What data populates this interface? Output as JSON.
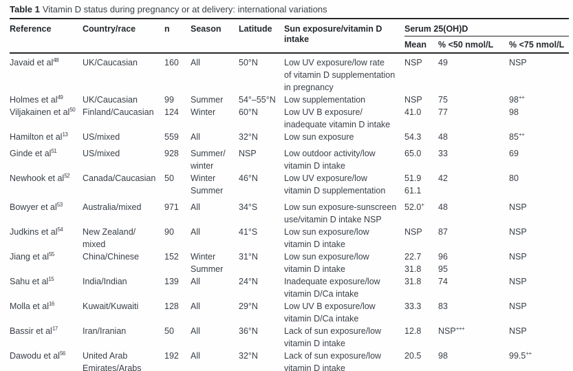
{
  "title": {
    "bold": "Table 1",
    "rest": "Vitamin D status during pregnancy or at delivery: international variations"
  },
  "headers": {
    "reference": "Reference",
    "country": "Country/race",
    "n": "n",
    "season": "Season",
    "latitude": "Latitude",
    "exposure": {
      "0": "Sun exposure/vitamin D",
      "1": "intake"
    },
    "serum_group": "Serum 25(OH)D",
    "mean": "Mean",
    "pct50": "% <50 nmol/L",
    "pct75": "% <75 nmol/L"
  },
  "rows": [
    {
      "reference": "Javaid et al^48",
      "country": [
        "UK/Caucasian"
      ],
      "n": "160",
      "season": [
        "All"
      ],
      "latitude": "50°N",
      "exposure": [
        "Low UV exposure/low rate",
        "of vitamin D supplementation",
        "in pregnancy"
      ],
      "mean": [
        "NSP"
      ],
      "pct50": [
        "49"
      ],
      "pct75": [
        "NSP"
      ]
    },
    {
      "reference": "Holmes et al^49",
      "country": [
        "UK/Caucasian"
      ],
      "n": "99",
      "season": [
        "Summer"
      ],
      "latitude": "54°–55°N",
      "exposure": [
        "Low supplementation"
      ],
      "mean": [
        "NSP"
      ],
      "pct50": [
        "75"
      ],
      "pct75": [
        "98^++"
      ]
    },
    {
      "reference": "Viljakainen et al^50",
      "country": [
        "Finland/Caucasian"
      ],
      "n": "124",
      "season": [
        "Winter"
      ],
      "latitude": "60°N",
      "exposure": [
        "Low UV B exposure/",
        "inadequate vitamin D intake"
      ],
      "mean": [
        "41.0"
      ],
      "pct50": [
        "77"
      ],
      "pct75": [
        "98"
      ]
    },
    {
      "reference": "Hamilton et al^13",
      "country": [
        "US/mixed"
      ],
      "n": "559",
      "season": [
        "All"
      ],
      "latitude": "32°N",
      "exposure": [
        "Low sun exposure"
      ],
      "mean": [
        "54.3"
      ],
      "pct50": [
        "48"
      ],
      "pct75": [
        "85^++"
      ]
    },
    {
      "reference": "Ginde et al^51",
      "country": [
        "US/mixed"
      ],
      "n": "928",
      "season": [
        "Summer/",
        "winter"
      ],
      "latitude": "NSP",
      "exposure": [
        "Low outdoor activity/low",
        "vitamin D intake"
      ],
      "mean": [
        "65.0"
      ],
      "pct50": [
        "33"
      ],
      "pct75": [
        "69"
      ]
    },
    {
      "reference": "Newhook et al^52",
      "country": [
        "Canada/Caucasian"
      ],
      "n": "50",
      "season": [
        "Winter",
        "Summer"
      ],
      "latitude": "46°N",
      "exposure": [
        "Low UV exposure/low",
        "vitamin D supplementation"
      ],
      "mean": [
        "51.9",
        "61.1"
      ],
      "pct50": [
        "42"
      ],
      "pct75": [
        "80"
      ]
    },
    {
      "reference": "Bowyer et al^53",
      "country": [
        "Australia/mixed"
      ],
      "n": "971",
      "season": [
        "All"
      ],
      "latitude": "34°S",
      "exposure": [
        "Low sun exposure-sunscreen",
        "use/vitamin D intake NSP"
      ],
      "mean": [
        "52.0^+"
      ],
      "pct50": [
        "48"
      ],
      "pct75": [
        "NSP"
      ]
    },
    {
      "reference": "Judkins et al^54",
      "country": [
        "New Zealand/",
        "mixed"
      ],
      "n": "90",
      "season": [
        "All"
      ],
      "latitude": "41°S",
      "exposure": [
        "Low sun exposure/low",
        "vitamin D intake"
      ],
      "mean": [
        "NSP"
      ],
      "pct50": [
        "87"
      ],
      "pct75": [
        "NSP"
      ]
    },
    {
      "reference": "Jiang et al^55",
      "country": [
        "China/Chinese"
      ],
      "n": "152",
      "season": [
        "Winter",
        "Summer"
      ],
      "latitude": "31°N",
      "exposure": [
        "Low sun exposure/low",
        "vitamin D intake"
      ],
      "mean": [
        "22.7",
        "31.8"
      ],
      "pct50": [
        "96",
        "95"
      ],
      "pct75": [
        "NSP"
      ]
    },
    {
      "reference": "Sahu et al^15",
      "country": [
        "India/Indian"
      ],
      "n": "139",
      "season": [
        "All"
      ],
      "latitude": "24°N",
      "exposure": [
        "Inadequate exposure/low",
        "vitamin D/Ca intake"
      ],
      "mean": [
        "31.8"
      ],
      "pct50": [
        "74"
      ],
      "pct75": [
        "NSP"
      ]
    },
    {
      "reference": "Molla et al^16",
      "country": [
        "Kuwait/Kuwaiti"
      ],
      "n": "128",
      "season": [
        "All"
      ],
      "latitude": "29°N",
      "exposure": [
        "Low UV B exposure/low",
        "vitamin D/Ca intake"
      ],
      "mean": [
        "33.3"
      ],
      "pct50": [
        "83"
      ],
      "pct75": [
        "NSP"
      ]
    },
    {
      "reference": "Bassir et al^17",
      "country": [
        "Iran/Iranian"
      ],
      "n": "50",
      "season": [
        "All"
      ],
      "latitude": "36°N",
      "exposure": [
        "Lack of sun exposure/low",
        "vitamin D intake"
      ],
      "mean": [
        "12.8"
      ],
      "pct50": [
        "NSP^+++"
      ],
      "pct75": [
        "NSP"
      ]
    },
    {
      "reference": "Dawodu et al^56",
      "country": [
        "United Arab",
        "Emirates/Arabs"
      ],
      "n": "192",
      "season": [
        "All"
      ],
      "latitude": "32°N",
      "exposure": [
        "Lack of sun exposure/low",
        "vitamin D intake"
      ],
      "mean": [
        "20.5"
      ],
      "pct50": [
        "98"
      ],
      "pct75": [
        "99.5^++"
      ]
    }
  ]
}
